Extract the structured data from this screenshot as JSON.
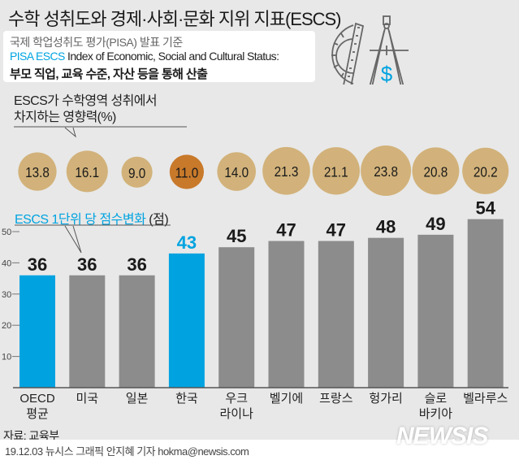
{
  "header": {
    "title": "수학 성취도와 경제·사회·문화 지위 지표(ESCS)",
    "info_line1": "국제 학업성취도 평가(PISA) 발표 기준",
    "info_line2_accent": "PISA ESCS",
    "info_line2_rest": " Index of Economic, Social and Cultural Status:",
    "info_line3": "부모 직업, 교육 수준, 자산 등을 통해 산출",
    "icon": "protractor-compass-dollar-icon"
  },
  "bubble_section": {
    "label_line1": "ESCS가 수학영역 성취에서",
    "label_line2": "차지하는 영향력(%)"
  },
  "bar_section": {
    "label": "ESCS 1단위 당 점수변화",
    "unit": " (점)"
  },
  "colors": {
    "accent_blue": "#00a3e0",
    "bar_gray": "#8c8c8c",
    "bubble_tan": "#d2b27a",
    "bubble_highlight": "#c8792a",
    "background": "#e8e8e8"
  },
  "chart_data": [
    {
      "type": "scatter",
      "title": "ESCS가 수학영역 성취에서 차지하는 영향력(%)",
      "categories": [
        "OECD 평균",
        "미국",
        "일본",
        "한국",
        "우크라이나",
        "벨기에",
        "프랑스",
        "헝가리",
        "슬로바키아",
        "벨라루스"
      ],
      "values": [
        13.8,
        16.1,
        9.0,
        11.0,
        14.0,
        21.3,
        21.1,
        23.8,
        20.8,
        20.2
      ],
      "labels": [
        "13.8",
        "16.1",
        "9.0",
        "11.0",
        "14.0",
        "21.3",
        "21.1",
        "23.8",
        "20.8",
        "20.2"
      ],
      "highlight_index": 3
    },
    {
      "type": "bar",
      "title": "ESCS 1단위 당 점수변화 (점)",
      "categories": [
        "OECD 평균",
        "미국",
        "일본",
        "한국",
        "우크라이나",
        "벨기에",
        "프랑스",
        "헝가리",
        "슬로바키아",
        "벨라루스"
      ],
      "category_lines": [
        [
          "OECD",
          "평균"
        ],
        [
          "미국"
        ],
        [
          "일본"
        ],
        [
          "한국"
        ],
        [
          "우크",
          "라이나"
        ],
        [
          "벨기에"
        ],
        [
          "프랑스"
        ],
        [
          "헝가리"
        ],
        [
          "슬로",
          "바키아"
        ],
        [
          "벨라루스"
        ]
      ],
      "values": [
        36,
        36,
        36,
        43,
        45,
        47,
        47,
        48,
        49,
        54
      ],
      "highlight_indices": [
        0,
        3
      ],
      "yticks": [
        10,
        20,
        30,
        40,
        50
      ],
      "ylim": [
        0,
        55
      ],
      "xlabel": "",
      "ylabel": ""
    }
  ],
  "footer": {
    "source": "자료: 교육부",
    "credit": "19.12.03 뉴시스 그래픽 안지혜 기자 hokma@newsis.com",
    "logo": "NEWSIS"
  }
}
